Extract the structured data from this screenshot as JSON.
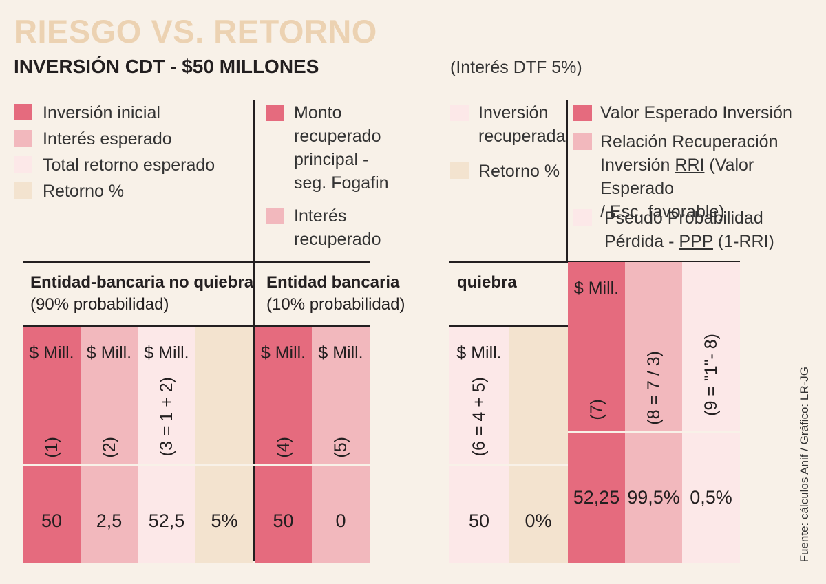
{
  "header": {
    "title": "RIESGO VS. RETORNO",
    "subtitle": "INVERSIÓN CDT - $50 MILLONES",
    "note": "(Interés  DTF 5%)"
  },
  "legend": {
    "group1": [
      "Inversión inicial",
      "Interés esperado",
      "Total retorno esperado",
      "Retorno %"
    ],
    "group2": [
      "Monto recuperado principal - seg. Fogafin",
      "Interés recuperado"
    ],
    "group3": [
      "Inversión recuperada",
      "Retorno %"
    ],
    "group4_a": "Valor Esperado Inversión",
    "group4_b_l1": "Relación Recuperación",
    "group4_b_l2a": "Inversión ",
    "group4_b_l2u": "RRI",
    "group4_b_l2c": " (Valor Esperado",
    "group4_b_l3": "/ Esc. favorable)",
    "group4_c_l1": "Pseudo Probabilidad",
    "group4_c_l2a": "Pérdida - ",
    "group4_c_l2u": "PPP",
    "group4_c_l2c": " (1-RRI)"
  },
  "sections": {
    "no_quiebra_title": "Entidad-bancaria no quiebra",
    "no_quiebra_prob": "(90% probabilidad)",
    "quiebra_title_a": "Entidad bancaria",
    "quiebra_prob": "(10% probabilidad)",
    "quiebra_title_b": "quiebra"
  },
  "unit": "$ Mill.",
  "columns": [
    {
      "id": "1",
      "label": "(1)",
      "value": "50"
    },
    {
      "id": "2",
      "label": "(2)",
      "value": "2,5"
    },
    {
      "id": "3",
      "label": "(3 = 1 + 2)",
      "value": "52,5"
    },
    {
      "id": "r1",
      "label": "",
      "value": "5%"
    },
    {
      "id": "4",
      "label": "(4)",
      "value": "50"
    },
    {
      "id": "5",
      "label": "(5)",
      "value": "0"
    },
    {
      "id": "6",
      "label": "(6 = 4 + 5)",
      "value": "50"
    },
    {
      "id": "r2",
      "label": "",
      "value": "0%"
    },
    {
      "id": "7",
      "label": "(7)",
      "value": "52,25"
    },
    {
      "id": "8",
      "label": "(8 = 7 / 3)",
      "value": "99,5%"
    },
    {
      "id": "9",
      "label": "(9 = \"1\"- 8)",
      "value": "0,5%"
    }
  ],
  "source": "Fuente: cálculos Anif / Gráfico: LR-JG",
  "colors": {
    "pink_dark": "#e56b7e",
    "pink_mid": "#f2b8bd",
    "pink_light": "#fce8e8",
    "beige": "#f3e3cf",
    "background": "#f8f1e8",
    "title": "#ecd2b2"
  }
}
